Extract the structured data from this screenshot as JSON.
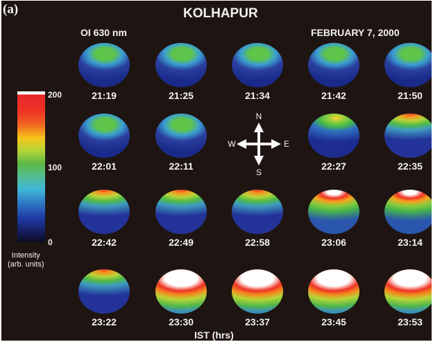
{
  "panel_label": "(a)",
  "title": "KOLHAPUR",
  "wavelength": "OI 630 nm",
  "date": "FEBRUARY 7, 2000",
  "colorbar": {
    "ticks": [
      "200",
      "100",
      "0"
    ],
    "label_line1": "Intensity",
    "label_line2": "(arb. units)",
    "colors": [
      "#ffffff",
      "#ee3324",
      "#f7c51c",
      "#5cb947",
      "#3fb7d8",
      "#1f3aa5",
      "#0c0c1e"
    ]
  },
  "compass": {
    "north": "N",
    "south": "S",
    "east": "E",
    "west": "W"
  },
  "xlabel": "IST (hrs)",
  "images": [
    [
      {
        "time": "21:19",
        "pattern": "p0"
      },
      {
        "time": "21:25",
        "pattern": "p0"
      },
      {
        "time": "21:34",
        "pattern": "p0"
      },
      {
        "time": "21:42",
        "pattern": "p0"
      },
      {
        "time": "21:50",
        "pattern": "p0"
      }
    ],
    [
      {
        "time": "22:01",
        "pattern": "p0"
      },
      {
        "time": "22:11",
        "pattern": "p0"
      },
      null,
      {
        "time": "22:27",
        "pattern": "p1"
      },
      {
        "time": "22:35",
        "pattern": "p2"
      }
    ],
    [
      {
        "time": "22:42",
        "pattern": "p2"
      },
      {
        "time": "22:49",
        "pattern": "p2"
      },
      {
        "time": "22:58",
        "pattern": "p2"
      },
      {
        "time": "23:06",
        "pattern": "p3"
      },
      {
        "time": "23:14",
        "pattern": "p3"
      }
    ],
    [
      {
        "time": "23:22",
        "pattern": "p2"
      },
      {
        "time": "23:30",
        "pattern": "p4"
      },
      {
        "time": "23:37",
        "pattern": "p4"
      },
      {
        "time": "23:45",
        "pattern": "p4"
      },
      {
        "time": "23:53",
        "pattern": "p4"
      }
    ]
  ]
}
